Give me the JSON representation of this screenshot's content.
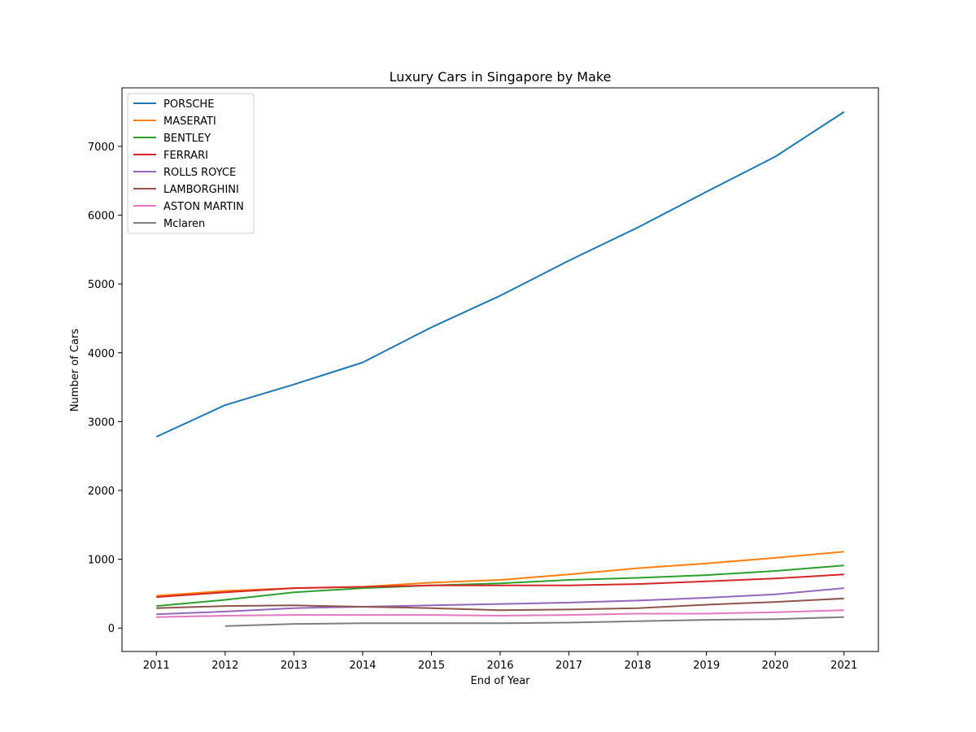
{
  "chart_data": {
    "type": "line",
    "title": "Luxury Cars in Singapore by Make",
    "xlabel": "End of Year",
    "ylabel": "Number of Cars",
    "x": [
      2011,
      2012,
      2013,
      2014,
      2015,
      2016,
      2017,
      2018,
      2019,
      2020,
      2021
    ],
    "xlim": [
      2010.5,
      2021.5
    ],
    "ylim": [
      -340,
      7850
    ],
    "yticks": [
      0,
      1000,
      2000,
      3000,
      4000,
      5000,
      6000,
      7000
    ],
    "grid": false,
    "legend_position": "top-left",
    "series": [
      {
        "name": "PORSCHE",
        "color": "#1f77b4",
        "values": [
          2780,
          3240,
          3540,
          3860,
          4370,
          4830,
          5340,
          5820,
          6340,
          6850,
          7500
        ]
      },
      {
        "name": "MASERATI",
        "color": "#ff7f0e",
        "values": [
          470,
          540,
          580,
          600,
          660,
          700,
          780,
          870,
          940,
          1020,
          1110
        ]
      },
      {
        "name": "BENTLEY",
        "color": "#2ca02c",
        "values": [
          320,
          410,
          520,
          580,
          620,
          650,
          700,
          730,
          770,
          830,
          910
        ]
      },
      {
        "name": "FERRARI",
        "color": "#d62728",
        "values": [
          450,
          520,
          580,
          600,
          620,
          620,
          620,
          640,
          680,
          720,
          780
        ]
      },
      {
        "name": "ROLLS ROYCE",
        "color": "#9467bd",
        "values": [
          200,
          240,
          290,
          310,
          330,
          350,
          370,
          400,
          440,
          490,
          580
        ]
      },
      {
        "name": "LAMBORGHINI",
        "color": "#8c564b",
        "values": [
          290,
          320,
          330,
          310,
          290,
          260,
          270,
          290,
          340,
          380,
          430
        ]
      },
      {
        "name": "ASTON MARTIN",
        "color": "#e377c2",
        "values": [
          160,
          180,
          190,
          190,
          190,
          180,
          190,
          210,
          210,
          230,
          260
        ]
      },
      {
        "name": "Mclaren",
        "color": "#7f7f7f",
        "values": [
          null,
          30,
          60,
          70,
          70,
          70,
          80,
          100,
          120,
          130,
          160
        ]
      }
    ]
  }
}
